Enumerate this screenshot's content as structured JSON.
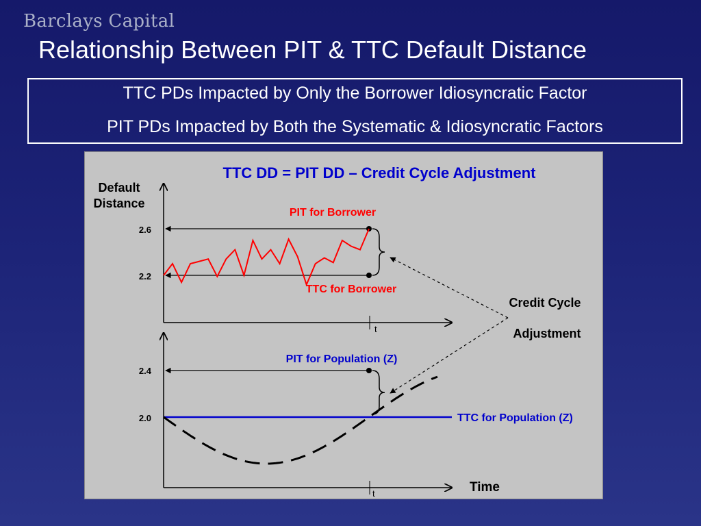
{
  "brand": "Barclays Capital",
  "title": "Relationship Between PIT & TTC Default Distance",
  "summary": {
    "line1": "TTC PDs Impacted by Only the Borrower Idiosyncratic Factor",
    "line2": "PIT PDs Impacted by Both the Systematic & Idiosyncratic Factors"
  },
  "diagram": {
    "formula": "TTC DD = PIT DD – Credit Cycle Adjustment",
    "y_axis_label_line1": "Default",
    "y_axis_label_line2": "Distance",
    "x_axis_label": "Time",
    "time_marker": "t",
    "credit_cycle_line1": "Credit Cycle",
    "credit_cycle_line2": "Adjustment",
    "colors": {
      "borrower": "#ff0000",
      "population": "#0000cc",
      "dark": "#000000"
    },
    "borrower_panel": {
      "pit_label": "PIT for Borrower",
      "ttc_label": "TTC for Borrower",
      "tick_high": "2.6",
      "tick_low": "2.2",
      "pit_value": 2.6,
      "ttc_value": 2.2,
      "path_values": [
        2.2,
        2.3,
        2.14,
        2.3,
        2.32,
        2.34,
        2.19,
        2.34,
        2.42,
        2.2,
        2.5,
        2.34,
        2.42,
        2.3,
        2.51,
        2.36,
        2.12,
        2.3,
        2.35,
        2.31,
        2.5,
        2.45,
        2.42,
        2.6
      ]
    },
    "population_panel": {
      "pit_label": "PIT for Population (Z)",
      "ttc_label": "TTC for Population (Z)",
      "tick_high": "2.4",
      "tick_low": "2.0",
      "pit_value": 2.4,
      "ttc_value": 2.0
    }
  }
}
